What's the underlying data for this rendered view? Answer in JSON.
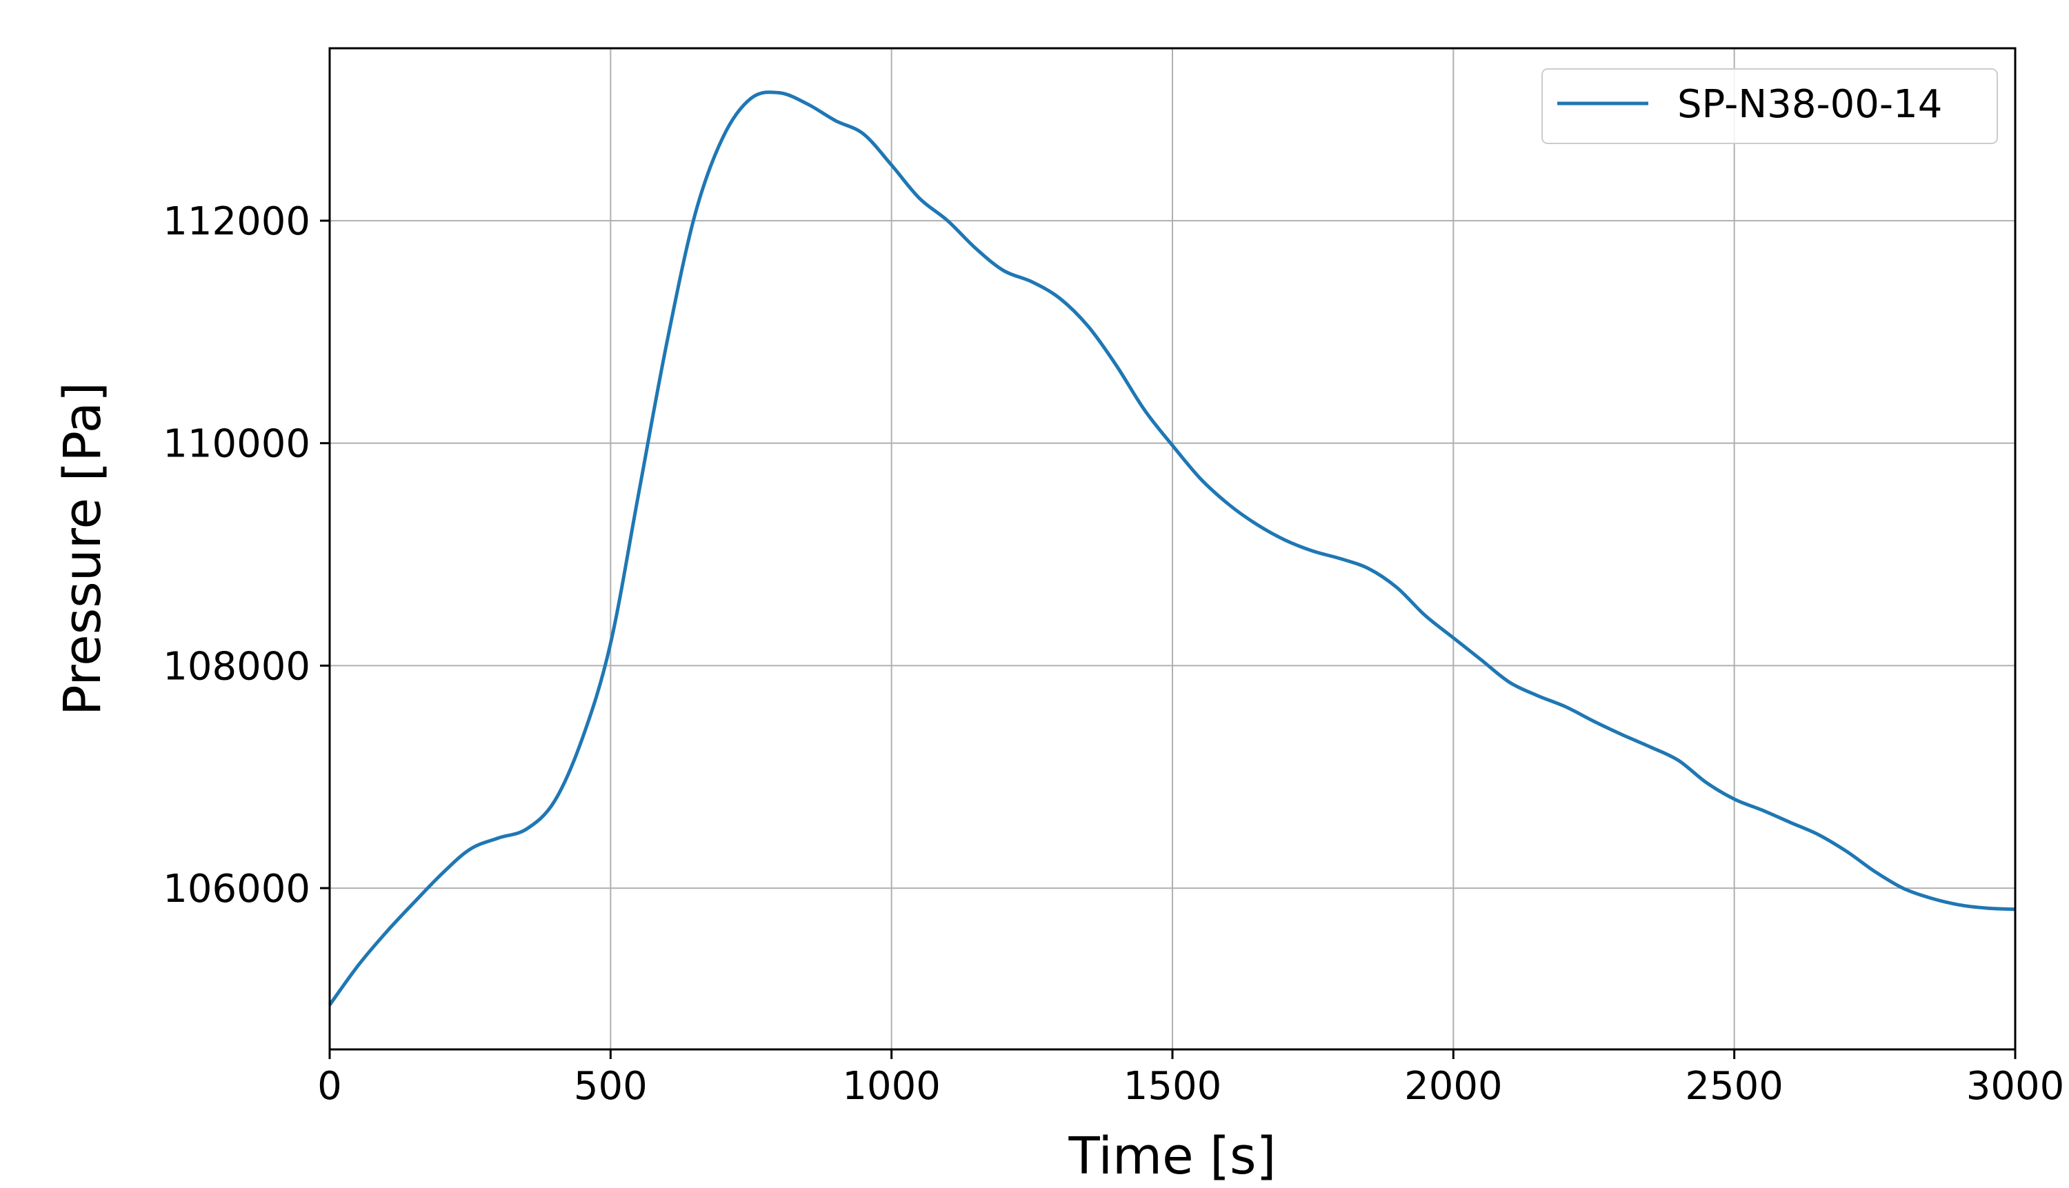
{
  "chart_data": {
    "type": "line",
    "title": "",
    "xlabel": "Time [s]",
    "ylabel": "Pressure [Pa]",
    "xlim": [
      0,
      3000
    ],
    "ylim": [
      104550,
      113550
    ],
    "x_ticks": [
      0,
      500,
      1000,
      1500,
      2000,
      2500,
      3000
    ],
    "x_tick_labels": [
      "0",
      "500",
      "1000",
      "1500",
      "2000",
      "2500",
      "3000"
    ],
    "y_ticks": [
      106000,
      108000,
      110000,
      112000
    ],
    "y_tick_labels": [
      "106000",
      "108000",
      "110000",
      "112000"
    ],
    "grid": true,
    "legend_position": "upper right",
    "series": [
      {
        "name": "SP-N38-00-14",
        "color": "#1f77b4",
        "x": [
          0,
          50,
          100,
          150,
          200,
          250,
          300,
          350,
          400,
          450,
          500,
          550,
          600,
          650,
          700,
          750,
          800,
          850,
          900,
          950,
          1000,
          1050,
          1100,
          1150,
          1200,
          1250,
          1300,
          1350,
          1400,
          1450,
          1500,
          1550,
          1600,
          1650,
          1700,
          1750,
          1800,
          1850,
          1900,
          1950,
          2000,
          2050,
          2100,
          2150,
          2200,
          2250,
          2300,
          2350,
          2400,
          2450,
          2500,
          2550,
          2600,
          2650,
          2700,
          2750,
          2800,
          2850,
          2900,
          2950,
          3000
        ],
        "y": [
          104950,
          105300,
          105600,
          105870,
          106130,
          106350,
          106450,
          106530,
          106780,
          107350,
          108200,
          109550,
          110900,
          112050,
          112750,
          113100,
          113150,
          113050,
          112900,
          112780,
          112500,
          112200,
          112000,
          111750,
          111550,
          111450,
          111300,
          111050,
          110700,
          110300,
          109980,
          109680,
          109450,
          109270,
          109130,
          109030,
          108960,
          108870,
          108700,
          108450,
          108250,
          108050,
          107850,
          107730,
          107630,
          107500,
          107380,
          107270,
          107150,
          106950,
          106800,
          106700,
          106590,
          106480,
          106330,
          106150,
          106000,
          105910,
          105850,
          105820,
          105810
        ]
      }
    ]
  }
}
